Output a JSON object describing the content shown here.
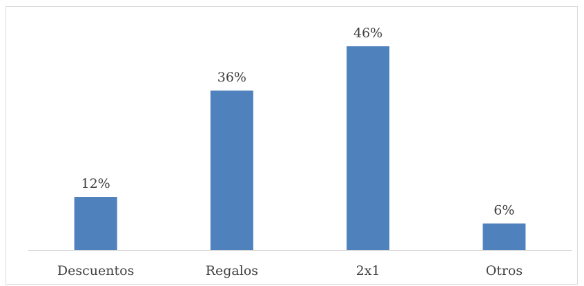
{
  "chart_data": {
    "type": "bar",
    "categories": [
      "Descuentos",
      "Regalos",
      "2x1",
      "Otros"
    ],
    "values": [
      12,
      36,
      46,
      6
    ],
    "data_labels": [
      "12%",
      "36%",
      "46%",
      "6%"
    ],
    "unit": "%",
    "ylim": [
      0,
      46
    ],
    "grid": false,
    "legend": "none",
    "colors": {
      "bar": "#4f81bd",
      "axis": "#d9d9d9",
      "text": "#404040"
    }
  }
}
